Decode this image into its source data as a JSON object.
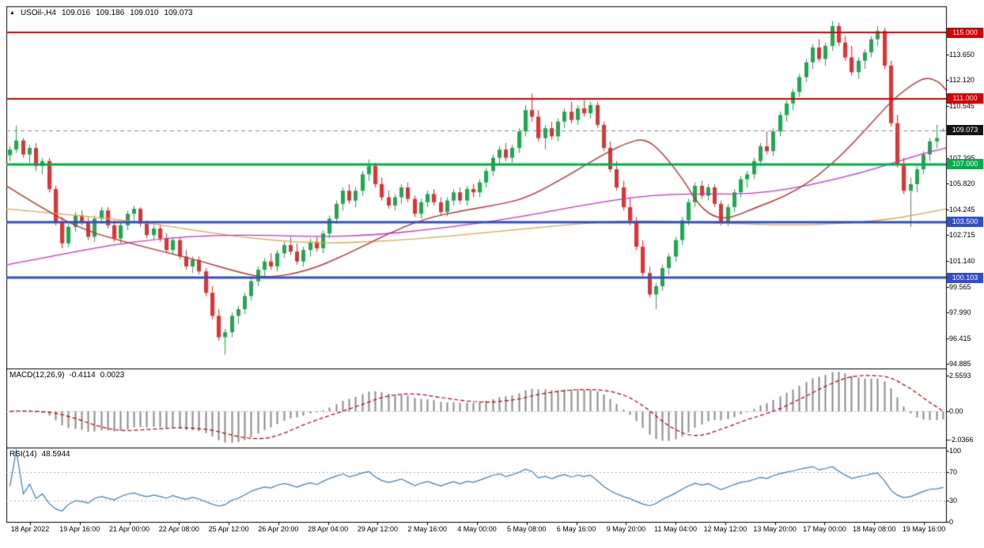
{
  "header": {
    "icon_glyph": "▲",
    "symbol_period": "USOil-,H4",
    "open": "109.016",
    "high": "109.186",
    "low": "109.010",
    "close": "109.073"
  },
  "chart_data": {
    "type": "candlestick",
    "title": "USOil-,H4",
    "colors": {
      "up": "#21A94F",
      "down": "#E03434",
      "background": "#FFFFFF",
      "border": "#000000"
    },
    "price_axis": {
      "min": 94.6,
      "max": 116.6,
      "ticks": [
        "113.650",
        "112.120",
        "110.545",
        "107.395",
        "105.820",
        "104.245",
        "102.715",
        "101.140",
        "99.565",
        "97.990",
        "96.415",
        "94.885"
      ]
    },
    "time_labels": [
      "18 Apr 2022",
      "19 Apr 16:00",
      "21 Apr 00:00",
      "22 Apr 08:00",
      "25 Apr 12:00",
      "26 Apr 20:00",
      "28 Apr 04:00",
      "29 Apr 12:00",
      "2 May 16:00",
      "4 May 00:00",
      "5 May 08:00",
      "6 May 16:00",
      "9 May 20:00",
      "11 May 04:00",
      "12 May 12:00",
      "13 May 20:00",
      "17 May 00:00",
      "18 May 08:00",
      "19 May 16:00"
    ],
    "levels": [
      {
        "label": "115.000",
        "value": 115.0,
        "color": "#DB0000",
        "width": 2
      },
      {
        "label": "111.000",
        "value": 111.0,
        "color": "#DB0000",
        "width": 2
      },
      {
        "label": "107.000",
        "value": 107.0,
        "color": "#00B04A",
        "width": 3
      },
      {
        "label": "103.500",
        "value": 103.5,
        "color": "#2F4FD0",
        "width": 3
      },
      {
        "label": "100.103",
        "value": 100.103,
        "color": "#2F4FD0",
        "width": 3
      }
    ],
    "current_price": {
      "label": "109.073",
      "value": 109.073,
      "badge_color": "#141414",
      "line_color": "#8A8A8A"
    },
    "candles": [
      [
        107.55,
        108.1,
        107.2,
        107.9
      ],
      [
        107.9,
        109.35,
        107.7,
        108.45
      ],
      [
        108.45,
        108.6,
        107.4,
        107.6
      ],
      [
        107.6,
        108.2,
        107.1,
        108.0
      ],
      [
        108.0,
        108.3,
        106.6,
        106.9
      ],
      [
        106.9,
        107.4,
        106.4,
        107.2
      ],
      [
        107.2,
        107.4,
        105.3,
        105.5
      ],
      [
        105.5,
        105.7,
        103.3,
        103.5
      ],
      [
        103.5,
        103.8,
        101.9,
        102.2
      ],
      [
        102.2,
        103.4,
        102.0,
        103.2
      ],
      [
        103.2,
        104.1,
        102.9,
        103.9
      ],
      [
        103.9,
        104.2,
        103.3,
        103.5
      ],
      [
        103.5,
        103.8,
        102.4,
        102.6
      ],
      [
        102.6,
        103.9,
        102.3,
        103.7
      ],
      [
        103.7,
        104.4,
        103.4,
        104.2
      ],
      [
        104.2,
        104.4,
        103.1,
        103.3
      ],
      [
        103.3,
        103.6,
        102.3,
        102.5
      ],
      [
        102.5,
        103.5,
        102.2,
        103.3
      ],
      [
        103.3,
        104.2,
        103.0,
        104.0
      ],
      [
        104.0,
        104.5,
        103.5,
        104.3
      ],
      [
        104.3,
        104.4,
        103.2,
        103.4
      ],
      [
        103.4,
        103.6,
        102.5,
        102.7
      ],
      [
        102.7,
        103.3,
        102.4,
        103.1
      ],
      [
        103.1,
        103.3,
        102.3,
        102.5
      ],
      [
        102.5,
        102.8,
        101.6,
        101.8
      ],
      [
        101.8,
        102.6,
        101.5,
        102.4
      ],
      [
        102.4,
        102.6,
        101.2,
        101.4
      ],
      [
        101.4,
        101.8,
        100.6,
        100.8
      ],
      [
        100.8,
        101.4,
        100.4,
        101.2
      ],
      [
        101.2,
        101.4,
        100.3,
        100.5
      ],
      [
        100.5,
        100.7,
        99.0,
        99.2
      ],
      [
        99.2,
        99.6,
        97.6,
        97.8
      ],
      [
        97.8,
        98.2,
        96.3,
        96.5
      ],
      [
        96.5,
        97.0,
        95.45,
        96.8
      ],
      [
        96.8,
        98.0,
        96.5,
        97.8
      ],
      [
        97.8,
        98.4,
        97.3,
        98.2
      ],
      [
        98.2,
        99.2,
        97.9,
        99.0
      ],
      [
        99.0,
        100.1,
        98.7,
        99.9
      ],
      [
        99.9,
        100.8,
        99.6,
        100.6
      ],
      [
        100.6,
        101.3,
        100.2,
        101.1
      ],
      [
        101.1,
        101.6,
        100.6,
        100.8
      ],
      [
        100.8,
        101.8,
        100.5,
        101.6
      ],
      [
        101.6,
        102.3,
        101.3,
        102.1
      ],
      [
        102.1,
        102.6,
        101.5,
        101.7
      ],
      [
        101.7,
        102.2,
        100.9,
        101.1
      ],
      [
        101.1,
        102.0,
        100.8,
        101.8
      ],
      [
        101.8,
        102.5,
        101.4,
        102.3
      ],
      [
        102.3,
        102.6,
        101.7,
        101.9
      ],
      [
        101.9,
        103.0,
        101.6,
        102.8
      ],
      [
        102.8,
        103.9,
        102.5,
        103.7
      ],
      [
        103.7,
        104.8,
        103.4,
        104.6
      ],
      [
        104.6,
        105.6,
        104.2,
        105.4
      ],
      [
        105.4,
        105.8,
        104.6,
        104.8
      ],
      [
        104.8,
        105.6,
        104.4,
        105.4
      ],
      [
        105.4,
        106.6,
        105.1,
        106.4
      ],
      [
        106.4,
        107.3,
        106.0,
        106.9
      ],
      [
        106.9,
        107.1,
        105.6,
        105.8
      ],
      [
        105.8,
        106.2,
        104.8,
        105.0
      ],
      [
        105.0,
        105.4,
        104.3,
        104.5
      ],
      [
        104.5,
        105.2,
        104.2,
        105.0
      ],
      [
        105.0,
        105.8,
        104.6,
        105.6
      ],
      [
        105.6,
        105.9,
        104.7,
        104.9
      ],
      [
        104.9,
        105.1,
        103.8,
        104.0
      ],
      [
        104.0,
        104.9,
        103.7,
        104.7
      ],
      [
        104.7,
        105.4,
        104.4,
        105.2
      ],
      [
        105.2,
        105.5,
        104.5,
        104.7
      ],
      [
        104.7,
        105.0,
        103.9,
        104.1
      ],
      [
        104.1,
        105.0,
        103.85,
        104.8
      ],
      [
        104.8,
        105.5,
        104.5,
        105.3
      ],
      [
        105.3,
        105.6,
        104.6,
        104.8
      ],
      [
        104.8,
        105.7,
        104.5,
        105.5
      ],
      [
        105.5,
        105.8,
        105.0,
        105.3
      ],
      [
        105.3,
        106.1,
        105.0,
        105.9
      ],
      [
        105.9,
        106.8,
        105.6,
        106.6
      ],
      [
        106.6,
        107.6,
        106.3,
        107.4
      ],
      [
        107.4,
        108.1,
        107.0,
        107.9
      ],
      [
        107.9,
        108.3,
        107.2,
        107.4
      ],
      [
        107.4,
        108.2,
        107.1,
        108.0
      ],
      [
        108.0,
        109.2,
        107.7,
        109.0
      ],
      [
        109.0,
        110.6,
        108.7,
        110.3
      ],
      [
        110.3,
        111.3,
        109.6,
        109.9
      ],
      [
        109.9,
        110.3,
        108.4,
        108.6
      ],
      [
        108.6,
        109.4,
        107.9,
        109.2
      ],
      [
        109.2,
        109.6,
        108.5,
        108.7
      ],
      [
        108.7,
        109.8,
        108.4,
        109.6
      ],
      [
        109.6,
        110.4,
        109.2,
        110.2
      ],
      [
        110.2,
        110.8,
        109.5,
        109.7
      ],
      [
        109.7,
        110.6,
        109.4,
        110.4
      ],
      [
        110.4,
        110.9,
        109.9,
        110.1
      ],
      [
        110.1,
        110.8,
        109.8,
        110.6
      ],
      [
        110.6,
        110.8,
        109.2,
        109.4
      ],
      [
        109.4,
        109.6,
        107.8,
        108.0
      ],
      [
        108.0,
        108.4,
        106.5,
        106.7
      ],
      [
        106.7,
        107.2,
        105.4,
        105.6
      ],
      [
        105.6,
        106.0,
        104.2,
        104.4
      ],
      [
        104.4,
        105.0,
        103.3,
        103.5
      ],
      [
        103.5,
        103.8,
        101.8,
        102.0
      ],
      [
        102.0,
        102.4,
        100.2,
        100.4
      ],
      [
        100.4,
        100.8,
        98.9,
        99.1
      ],
      [
        99.1,
        99.8,
        98.2,
        99.6
      ],
      [
        99.6,
        100.9,
        99.3,
        100.7
      ],
      [
        100.7,
        101.6,
        100.3,
        101.4
      ],
      [
        101.4,
        102.6,
        101.1,
        102.4
      ],
      [
        102.4,
        103.8,
        102.1,
        103.6
      ],
      [
        103.6,
        104.9,
        103.3,
        104.7
      ],
      [
        104.7,
        105.9,
        104.4,
        105.7
      ],
      [
        105.7,
        106.0,
        104.9,
        105.1
      ],
      [
        105.1,
        105.8,
        104.8,
        105.6
      ],
      [
        105.6,
        105.8,
        104.4,
        104.6
      ],
      [
        104.6,
        104.8,
        103.3,
        103.5
      ],
      [
        103.5,
        104.6,
        103.25,
        104.4
      ],
      [
        104.4,
        105.5,
        104.1,
        105.3
      ],
      [
        105.3,
        106.3,
        105.0,
        106.1
      ],
      [
        106.1,
        106.6,
        105.6,
        106.4
      ],
      [
        106.4,
        107.4,
        106.1,
        107.2
      ],
      [
        107.2,
        108.3,
        106.9,
        108.1
      ],
      [
        108.1,
        109.0,
        107.6,
        107.8
      ],
      [
        107.8,
        109.2,
        107.5,
        109.0
      ],
      [
        109.0,
        110.2,
        108.7,
        110.0
      ],
      [
        110.0,
        110.9,
        109.6,
        110.7
      ],
      [
        110.7,
        111.6,
        110.3,
        111.4
      ],
      [
        111.4,
        112.5,
        111.1,
        112.3
      ],
      [
        112.3,
        113.4,
        112.0,
        113.2
      ],
      [
        113.2,
        114.3,
        112.8,
        114.1
      ],
      [
        114.1,
        114.6,
        113.2,
        113.4
      ],
      [
        113.4,
        114.4,
        113.0,
        114.2
      ],
      [
        114.2,
        115.7,
        113.9,
        115.4
      ],
      [
        115.4,
        115.6,
        114.2,
        114.4
      ],
      [
        114.4,
        114.8,
        113.3,
        113.5
      ],
      [
        113.5,
        114.2,
        112.4,
        112.6
      ],
      [
        112.6,
        113.5,
        112.2,
        113.3
      ],
      [
        113.3,
        114.0,
        112.8,
        113.8
      ],
      [
        113.8,
        114.8,
        113.5,
        114.6
      ],
      [
        114.6,
        115.4,
        114.2,
        115.1
      ],
      [
        115.1,
        115.3,
        112.8,
        113.0
      ],
      [
        113.0,
        113.3,
        109.3,
        109.5
      ],
      [
        109.5,
        110.0,
        106.8,
        107.0
      ],
      [
        107.0,
        107.4,
        105.2,
        105.4
      ],
      [
        105.4,
        106.2,
        103.2,
        105.8
      ],
      [
        105.8,
        106.9,
        105.3,
        106.7
      ],
      [
        106.7,
        107.8,
        106.4,
        107.6
      ],
      [
        107.6,
        108.6,
        107.2,
        108.4
      ],
      [
        108.4,
        109.4,
        108.0,
        108.6
      ],
      [
        109.016,
        109.186,
        109.01,
        109.073
      ]
    ],
    "moving_averages": [
      {
        "name": "ma-orange",
        "color": "#E2A64B",
        "width": 1.3,
        "points": [
          [
            0,
            104.3
          ],
          [
            8,
            104.0
          ],
          [
            16,
            103.7
          ],
          [
            24,
            103.3
          ],
          [
            32,
            102.8
          ],
          [
            40,
            102.4
          ],
          [
            48,
            102.2
          ],
          [
            56,
            102.3
          ],
          [
            64,
            102.5
          ],
          [
            72,
            102.8
          ],
          [
            80,
            103.1
          ],
          [
            88,
            103.4
          ],
          [
            96,
            103.6
          ],
          [
            104,
            103.5
          ],
          [
            112,
            103.4
          ],
          [
            120,
            103.3
          ],
          [
            128,
            103.4
          ],
          [
            134,
            103.6
          ],
          [
            139,
            103.9
          ],
          [
            144,
            104.3
          ]
        ]
      },
      {
        "name": "ma-magenta",
        "color": "#CC33CC",
        "width": 1.3,
        "points": [
          [
            0,
            100.9
          ],
          [
            8,
            101.5
          ],
          [
            16,
            102.1
          ],
          [
            24,
            102.5
          ],
          [
            32,
            102.7
          ],
          [
            40,
            102.7
          ],
          [
            48,
            102.6
          ],
          [
            56,
            102.7
          ],
          [
            64,
            103.0
          ],
          [
            72,
            103.4
          ],
          [
            80,
            103.9
          ],
          [
            88,
            104.5
          ],
          [
            96,
            105.0
          ],
          [
            102,
            105.2
          ],
          [
            108,
            105.2
          ],
          [
            114,
            105.2
          ],
          [
            120,
            105.5
          ],
          [
            126,
            106.0
          ],
          [
            131,
            106.5
          ],
          [
            136,
            107.1
          ],
          [
            140,
            107.6
          ],
          [
            144,
            108.0
          ]
        ]
      },
      {
        "name": "ma-red",
        "color": "#C23030",
        "width": 1.4,
        "points": [
          [
            0,
            105.7
          ],
          [
            6,
            104.2
          ],
          [
            12,
            103.0
          ],
          [
            18,
            102.3
          ],
          [
            24,
            101.7
          ],
          [
            30,
            101.1
          ],
          [
            36,
            100.4
          ],
          [
            40,
            100.1
          ],
          [
            46,
            100.5
          ],
          [
            52,
            101.5
          ],
          [
            58,
            102.7
          ],
          [
            64,
            103.7
          ],
          [
            70,
            104.2
          ],
          [
            76,
            104.6
          ],
          [
            80,
            105.0
          ],
          [
            86,
            106.3
          ],
          [
            91,
            107.5
          ],
          [
            95,
            108.3
          ],
          [
            98,
            108.6
          ],
          [
            101,
            107.5
          ],
          [
            104,
            105.9
          ],
          [
            106,
            104.6
          ],
          [
            108,
            103.9
          ],
          [
            110,
            103.7
          ],
          [
            112,
            103.9
          ],
          [
            115,
            104.4
          ],
          [
            119,
            105.0
          ],
          [
            123,
            105.9
          ],
          [
            127,
            107.2
          ],
          [
            130,
            108.4
          ],
          [
            133,
            109.7
          ],
          [
            136,
            111.0
          ],
          [
            139,
            111.9
          ],
          [
            141,
            112.3
          ],
          [
            143,
            112.0
          ],
          [
            144,
            111.5
          ]
        ]
      }
    ],
    "indicators": [
      {
        "name": "MACD",
        "label": "MACD(12,26,9)",
        "value_main": "-0.4114",
        "value_signal": "0.0023",
        "params": [
          12,
          26,
          9
        ],
        "ticks": [
          "2.5593",
          "0.00",
          "-2.0366"
        ],
        "histogram_color": "#8C8C8C",
        "signal_color": "#C00000",
        "zero_line_color": "#C0C0C0"
      },
      {
        "name": "RSI",
        "label": "RSI(14)",
        "value": "48.5944",
        "period": 14,
        "ticks": [
          "100",
          "70",
          "30",
          "0"
        ],
        "levels": [
          70,
          30
        ],
        "line_color": "#3B7DC0",
        "level_color": "#A8B0D0"
      }
    ]
  }
}
